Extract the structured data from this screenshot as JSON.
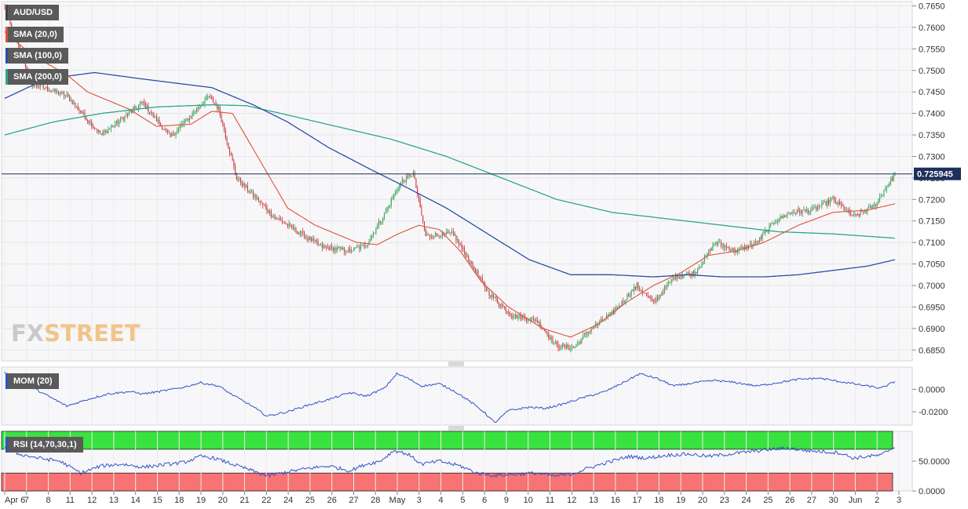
{
  "symbol": "AUD/USD",
  "indicators": {
    "sma20": "SMA (20,0)",
    "sma100": "SMA (100,0)",
    "sma200": "SMA (200,0)",
    "mom": "MOM (20)",
    "rsi": "RSI (14,70,30,1)"
  },
  "watermark": {
    "fx": "FX",
    "street": "STREET"
  },
  "colors": {
    "up": "#2e9e57",
    "down": "#c8343a",
    "sma20": "#e0503c",
    "sma100": "#2a4fa8",
    "sma200": "#2aa889",
    "mom": "#2f52c9",
    "rsi": "#2f52c9",
    "rsi_overbought": "#39e23f",
    "rsi_oversold": "#f77374",
    "price_line": "#1d2f5c"
  },
  "chart_data": {
    "type": "candlestick",
    "last_price": "0.725945",
    "price_axis": {
      "ylim": [
        0.6825,
        0.766
      ],
      "ticks": [
        "0.7650",
        "0.7600",
        "0.7550",
        "0.7500",
        "0.7450",
        "0.7400",
        "0.7350",
        "0.7300",
        "0.7250",
        "0.7200",
        "0.7150",
        "0.7100",
        "0.7050",
        "0.7000",
        "0.6950",
        "0.6900",
        "0.6850"
      ]
    },
    "mom_axis": {
      "ylim": [
        -0.032,
        0.02
      ],
      "ticks": [
        "0.0000",
        "-0.0200"
      ]
    },
    "rsi_axis": {
      "ylim": [
        0,
        100
      ],
      "ticks": [
        "50.0000",
        "0.0000"
      ],
      "overbought": 70,
      "oversold": 30
    },
    "x_labels": [
      "Apr 6",
      "7",
      "8",
      "11",
      "12",
      "13",
      "14",
      "15",
      "18",
      "19",
      "20",
      "21",
      "22",
      "24",
      "25",
      "26",
      "27",
      "28",
      "May",
      "3",
      "4",
      "5",
      "6",
      "9",
      "10",
      "11",
      "12",
      "13",
      "16",
      "17",
      "18",
      "19",
      "20",
      "23",
      "24",
      "25",
      "26",
      "27",
      "30",
      "Jun",
      "2",
      "3"
    ],
    "price_anchors": [
      [
        0,
        0.764
      ],
      [
        20,
        0.747
      ],
      [
        45,
        0.744
      ],
      [
        70,
        0.735
      ],
      [
        100,
        0.7425
      ],
      [
        120,
        0.7345
      ],
      [
        148,
        0.744
      ],
      [
        155,
        0.741
      ],
      [
        168,
        0.725
      ],
      [
        195,
        0.716
      ],
      [
        230,
        0.709
      ],
      [
        250,
        0.708
      ],
      [
        262,
        0.7095
      ],
      [
        274,
        0.716
      ],
      [
        287,
        0.724
      ],
      [
        296,
        0.726
      ],
      [
        305,
        0.7115
      ],
      [
        325,
        0.712
      ],
      [
        350,
        0.6985
      ],
      [
        368,
        0.693
      ],
      [
        385,
        0.692
      ],
      [
        400,
        0.686
      ],
      [
        412,
        0.6855
      ],
      [
        425,
        0.69
      ],
      [
        440,
        0.6935
      ],
      [
        458,
        0.7
      ],
      [
        470,
        0.696
      ],
      [
        485,
        0.702
      ],
      [
        500,
        0.703
      ],
      [
        515,
        0.71
      ],
      [
        530,
        0.708
      ],
      [
        545,
        0.71
      ],
      [
        558,
        0.715
      ],
      [
        570,
        0.717
      ],
      [
        585,
        0.7175
      ],
      [
        600,
        0.72
      ],
      [
        615,
        0.716
      ],
      [
        630,
        0.7185
      ],
      [
        645,
        0.7259
      ]
    ],
    "sma20_anchors": [
      [
        0,
        0.759
      ],
      [
        20,
        0.7535
      ],
      [
        45,
        0.749
      ],
      [
        60,
        0.745
      ],
      [
        90,
        0.741
      ],
      [
        110,
        0.737
      ],
      [
        135,
        0.7375
      ],
      [
        150,
        0.7405
      ],
      [
        165,
        0.74
      ],
      [
        185,
        0.729
      ],
      [
        205,
        0.718
      ],
      [
        225,
        0.714
      ],
      [
        255,
        0.71
      ],
      [
        270,
        0.7095
      ],
      [
        285,
        0.712
      ],
      [
        300,
        0.714
      ],
      [
        315,
        0.713
      ],
      [
        330,
        0.708
      ],
      [
        345,
        0.701
      ],
      [
        365,
        0.695
      ],
      [
        390,
        0.69
      ],
      [
        410,
        0.688
      ],
      [
        430,
        0.691
      ],
      [
        450,
        0.696
      ],
      [
        470,
        0.7
      ],
      [
        490,
        0.703
      ],
      [
        510,
        0.707
      ],
      [
        530,
        0.708
      ],
      [
        550,
        0.71
      ],
      [
        575,
        0.714
      ],
      [
        600,
        0.717
      ],
      [
        625,
        0.7175
      ],
      [
        645,
        0.719
      ]
    ],
    "sma100_anchors": [
      [
        0,
        0.7435
      ],
      [
        30,
        0.748
      ],
      [
        65,
        0.7495
      ],
      [
        100,
        0.748
      ],
      [
        150,
        0.746
      ],
      [
        180,
        0.742
      ],
      [
        205,
        0.738
      ],
      [
        235,
        0.732
      ],
      [
        265,
        0.727
      ],
      [
        290,
        0.723
      ],
      [
        320,
        0.718
      ],
      [
        350,
        0.712
      ],
      [
        380,
        0.706
      ],
      [
        410,
        0.7025
      ],
      [
        440,
        0.7025
      ],
      [
        470,
        0.702
      ],
      [
        495,
        0.7025
      ],
      [
        520,
        0.702
      ],
      [
        550,
        0.702
      ],
      [
        575,
        0.7025
      ],
      [
        600,
        0.7035
      ],
      [
        625,
        0.7045
      ],
      [
        645,
        0.706
      ]
    ],
    "sma200_anchors": [
      [
        0,
        0.735
      ],
      [
        35,
        0.738
      ],
      [
        70,
        0.74
      ],
      [
        110,
        0.7415
      ],
      [
        150,
        0.742
      ],
      [
        175,
        0.7418
      ],
      [
        200,
        0.74
      ],
      [
        240,
        0.737
      ],
      [
        280,
        0.734
      ],
      [
        320,
        0.73
      ],
      [
        360,
        0.725
      ],
      [
        400,
        0.72
      ],
      [
        440,
        0.717
      ],
      [
        480,
        0.7155
      ],
      [
        520,
        0.714
      ],
      [
        560,
        0.7125
      ],
      [
        600,
        0.712
      ],
      [
        645,
        0.711
      ]
    ],
    "mom_anchors": [
      [
        0,
        0.015
      ],
      [
        15,
        0.005
      ],
      [
        30,
        -0.005
      ],
      [
        45,
        -0.015
      ],
      [
        60,
        -0.009
      ],
      [
        75,
        -0.004
      ],
      [
        90,
        -0.002
      ],
      [
        100,
        -0.004
      ],
      [
        112,
        -0.002
      ],
      [
        130,
        0.002
      ],
      [
        142,
        0.006
      ],
      [
        155,
        0.003
      ],
      [
        165,
        -0.005
      ],
      [
        178,
        -0.014
      ],
      [
        190,
        -0.024
      ],
      [
        205,
        -0.02
      ],
      [
        220,
        -0.014
      ],
      [
        235,
        -0.009
      ],
      [
        250,
        -0.003
      ],
      [
        262,
        -0.006
      ],
      [
        275,
        0.001
      ],
      [
        284,
        0.014
      ],
      [
        292,
        0.01
      ],
      [
        302,
        0.003
      ],
      [
        315,
        0.005
      ],
      [
        325,
        -0.001
      ],
      [
        335,
        -0.009
      ],
      [
        347,
        -0.02
      ],
      [
        355,
        -0.03
      ],
      [
        365,
        -0.019
      ],
      [
        380,
        -0.016
      ],
      [
        392,
        -0.017
      ],
      [
        405,
        -0.013
      ],
      [
        420,
        -0.007
      ],
      [
        435,
        -0.002
      ],
      [
        448,
        0.006
      ],
      [
        460,
        0.014
      ],
      [
        472,
        0.01
      ],
      [
        485,
        0.003
      ],
      [
        500,
        0.006
      ],
      [
        515,
        0.008
      ],
      [
        530,
        0.006
      ],
      [
        545,
        0.003
      ],
      [
        560,
        0.006
      ],
      [
        575,
        0.009
      ],
      [
        590,
        0.01
      ],
      [
        605,
        0.007
      ],
      [
        620,
        0.004
      ],
      [
        635,
        0.001
      ],
      [
        645,
        0.007
      ]
    ],
    "rsi_anchors": [
      [
        0,
        75
      ],
      [
        10,
        62
      ],
      [
        25,
        55
      ],
      [
        40,
        50
      ],
      [
        55,
        30
      ],
      [
        70,
        42
      ],
      [
        85,
        45
      ],
      [
        100,
        40
      ],
      [
        115,
        44
      ],
      [
        130,
        48
      ],
      [
        142,
        58
      ],
      [
        152,
        55
      ],
      [
        165,
        45
      ],
      [
        178,
        35
      ],
      [
        190,
        25
      ],
      [
        205,
        32
      ],
      [
        220,
        38
      ],
      [
        235,
        42
      ],
      [
        250,
        34
      ],
      [
        262,
        45
      ],
      [
        272,
        50
      ],
      [
        282,
        68
      ],
      [
        292,
        62
      ],
      [
        302,
        45
      ],
      [
        315,
        50
      ],
      [
        330,
        42
      ],
      [
        342,
        30
      ],
      [
        355,
        26
      ],
      [
        370,
        28
      ],
      [
        385,
        30
      ],
      [
        398,
        25
      ],
      [
        410,
        28
      ],
      [
        425,
        40
      ],
      [
        440,
        50
      ],
      [
        452,
        58
      ],
      [
        465,
        55
      ],
      [
        480,
        60
      ],
      [
        495,
        62
      ],
      [
        510,
        58
      ],
      [
        525,
        62
      ],
      [
        540,
        66
      ],
      [
        555,
        70
      ],
      [
        568,
        72
      ],
      [
        580,
        68
      ],
      [
        592,
        66
      ],
      [
        605,
        64
      ],
      [
        615,
        55
      ],
      [
        625,
        58
      ],
      [
        635,
        60
      ],
      [
        645,
        75
      ]
    ]
  }
}
